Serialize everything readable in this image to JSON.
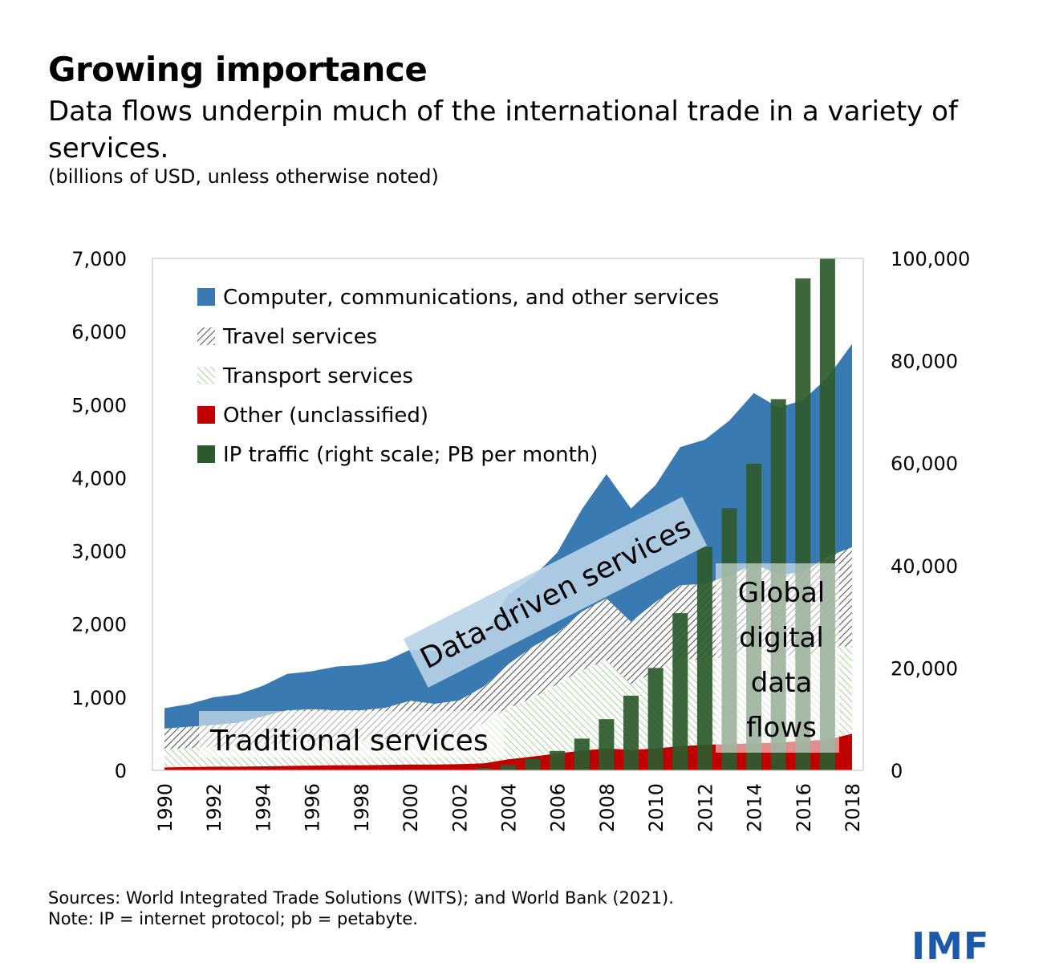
{
  "header": {
    "title": "Growing importance",
    "subtitle": "Data flows underpin much of the international trade in a variety of services.",
    "units": "(billions of USD, unless otherwise noted)"
  },
  "footer": {
    "sources": "Sources: World Integrated Trade Solutions (WITS); and World Bank (2021).",
    "note": "Note: IP = internet protocol; pb = petabyte.",
    "logo": "IMF"
  },
  "colors": {
    "computer": "#3a7ab3",
    "travel_hatch": "#555555",
    "transport_hatch": "#9ccf8a",
    "other": "#c00000",
    "ip": "#2d5a2d"
  },
  "chart_data": {
    "type": "area",
    "x": [
      1990,
      1991,
      1992,
      1993,
      1994,
      1995,
      1996,
      1997,
      1998,
      1999,
      2000,
      2001,
      2002,
      2003,
      2004,
      2005,
      2006,
      2007,
      2008,
      2009,
      2010,
      2011,
      2012,
      2013,
      2014,
      2015,
      2016,
      2017,
      2018
    ],
    "x_tick_labels": [
      "1990",
      "1992",
      "1994",
      "1996",
      "1998",
      "2000",
      "2002",
      "2004",
      "2006",
      "2008",
      "2010",
      "2012",
      "2014",
      "2016",
      "2018"
    ],
    "ylim": [
      0,
      7000
    ],
    "y_ticks": [
      "0",
      "1,000",
      "2,000",
      "3,000",
      "4,000",
      "5,000",
      "6,000",
      "7,000"
    ],
    "y2lim": [
      0,
      100000
    ],
    "y2_ticks": [
      "0",
      "20,000",
      "40,000",
      "60,000",
      "80,000",
      "100,000"
    ],
    "stack_order": [
      "Other (unclassified)",
      "Transport services",
      "Travel services",
      "Computer, communications, and other services"
    ],
    "series": [
      {
        "name": "Other (unclassified)",
        "type": "area",
        "axis": "left",
        "values": [
          40,
          45,
          50,
          50,
          55,
          60,
          65,
          70,
          70,
          75,
          80,
          80,
          85,
          95,
          150,
          190,
          230,
          270,
          300,
          280,
          300,
          330,
          350,
          360,
          370,
          380,
          400,
          420,
          500
        ]
      },
      {
        "name": "Transport services",
        "type": "area",
        "axis": "left",
        "values": [
          250,
          260,
          270,
          280,
          300,
          310,
          330,
          320,
          330,
          350,
          400,
          380,
          400,
          550,
          700,
          800,
          950,
          1100,
          1200,
          900,
          1050,
          1200,
          1150,
          1200,
          1300,
          1200,
          1150,
          1250,
          1200
        ]
      },
      {
        "name": "Travel services",
        "type": "area",
        "axis": "left",
        "values": [
          280,
          290,
          300,
          320,
          380,
          450,
          440,
          430,
          420,
          430,
          470,
          450,
          470,
          500,
          600,
          700,
          700,
          800,
          850,
          850,
          950,
          1000,
          1050,
          1100,
          1150,
          1100,
          1150,
          1250,
          1350
        ]
      },
      {
        "name": "Computer, communications, and other services",
        "type": "area",
        "axis": "left",
        "values": [
          280,
          310,
          380,
          390,
          420,
          500,
          520,
          600,
          620,
          640,
          700,
          720,
          680,
          700,
          950,
          950,
          1100,
          1400,
          1700,
          1550,
          1600,
          1890,
          1970,
          2120,
          2340,
          2280,
          2360,
          2450,
          2780
        ]
      },
      {
        "name": "IP traffic (right scale; PB per month)",
        "type": "bar",
        "axis": "right",
        "values": [
          0,
          0,
          0,
          0,
          0,
          0,
          0,
          0,
          0,
          0,
          0,
          0,
          0,
          500,
          1100,
          2200,
          3800,
          6200,
          10000,
          14600,
          20000,
          30700,
          43600,
          51200,
          59900,
          72500,
          96100,
          100000,
          0
        ]
      }
    ],
    "legend": [
      "Computer, communications, and other services",
      "Travel services",
      "Transport services",
      "Other (unclassified)",
      "IP traffic (right scale; PB per month)"
    ],
    "legend_position": "top-left",
    "annotations": {
      "data_driven": "Data-driven services",
      "traditional": "Traditional services",
      "global_lines": [
        "Global",
        "digital",
        "data",
        "flows"
      ]
    },
    "grid": false
  }
}
